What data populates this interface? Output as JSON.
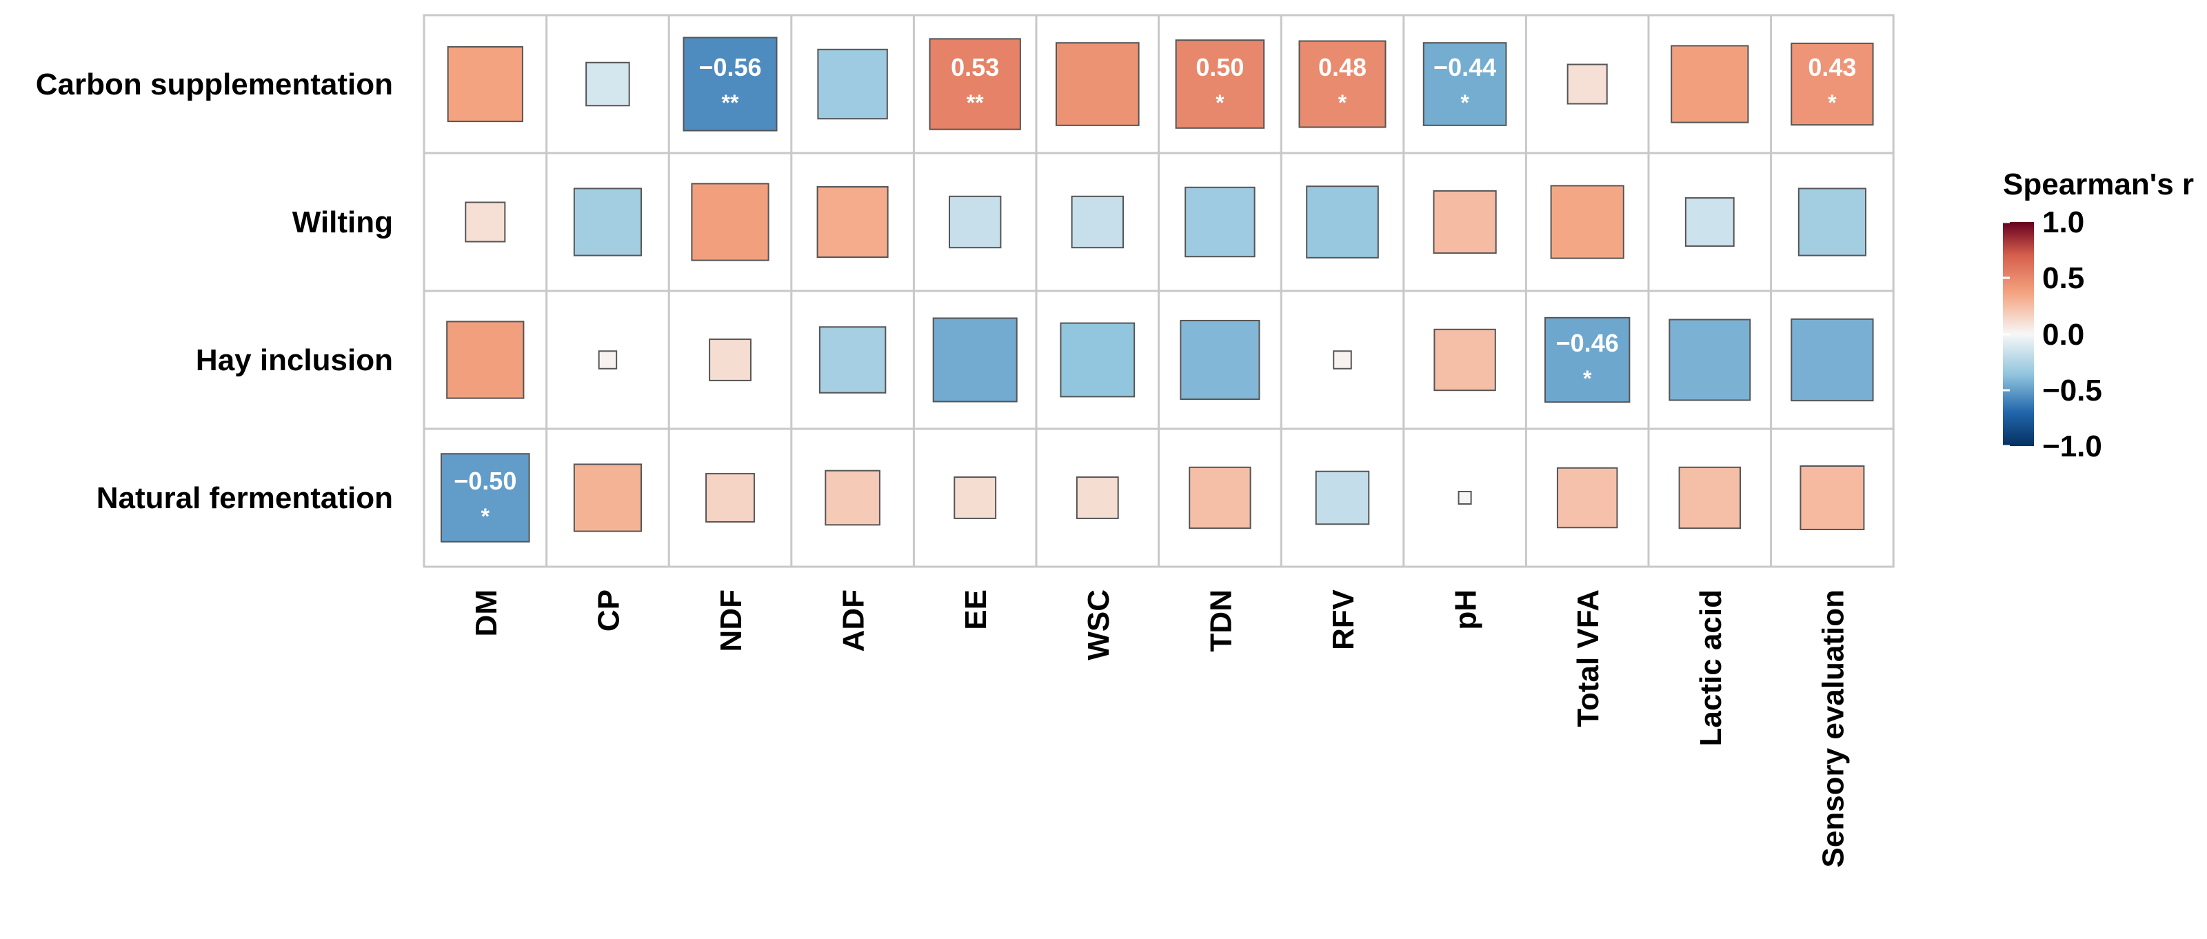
{
  "chart_data": {
    "type": "heatmap",
    "rows": [
      "Carbon supplementation",
      "Wilting",
      "Hay inclusion",
      "Natural fermentation"
    ],
    "columns": [
      "DM",
      "CP",
      "NDF",
      "ADF",
      "EE",
      "WSC",
      "TDN",
      "RFV",
      "pH",
      "Total VFA",
      "Lactic acid",
      "Sensory evaluation"
    ],
    "values": [
      [
        0.36,
        -0.12,
        -0.56,
        -0.31,
        0.53,
        0.44,
        0.5,
        0.48,
        -0.44,
        0.1,
        0.38,
        0.43
      ],
      [
        0.1,
        -0.29,
        0.38,
        0.32,
        -0.17,
        -0.17,
        -0.31,
        -0.33,
        0.25,
        0.34,
        -0.15,
        -0.29
      ],
      [
        0.38,
        0.02,
        0.11,
        -0.28,
        -0.45,
        -0.35,
        -0.4,
        0.02,
        0.24,
        -0.46,
        -0.42,
        -0.43
      ],
      [
        -0.5,
        0.29,
        0.15,
        0.19,
        0.11,
        0.11,
        0.24,
        -0.18,
        0.01,
        0.23,
        0.24,
        0.26
      ]
    ],
    "labels": [
      [
        null,
        null,
        {
          "value": "−0.56",
          "sig": "**"
        },
        null,
        {
          "value": "0.53",
          "sig": "**"
        },
        null,
        {
          "value": "0.50",
          "sig": "*"
        },
        {
          "value": "0.48",
          "sig": "*"
        },
        {
          "value": "−0.44",
          "sig": "*"
        },
        null,
        null,
        {
          "value": "0.43",
          "sig": "*"
        }
      ],
      [
        null,
        null,
        null,
        null,
        null,
        null,
        null,
        null,
        null,
        null,
        null,
        null
      ],
      [
        null,
        null,
        null,
        null,
        null,
        null,
        null,
        null,
        null,
        {
          "value": "−0.46",
          "sig": "*"
        },
        null,
        null
      ],
      [
        {
          "value": "−0.50",
          "sig": "*"
        },
        null,
        null,
        null,
        null,
        null,
        null,
        null,
        null,
        null,
        null,
        null
      ]
    ],
    "legend": {
      "title": "Spearman's r",
      "ticks": [
        "1.0",
        "0.5",
        "0.0",
        "−0.5",
        "−1.0"
      ],
      "range": [
        -1,
        1
      ],
      "placement": "right"
    },
    "colors": {
      "strong_negative": "#053061",
      "negative": "#2166ac",
      "light_negative": "#92c5de",
      "neutral": "#f7f7f7",
      "light_positive": "#f4a582",
      "positive": "#d6604d",
      "strong_positive": "#67001f",
      "grid": "#c8c8c8",
      "cell_border": "#555555"
    }
  }
}
